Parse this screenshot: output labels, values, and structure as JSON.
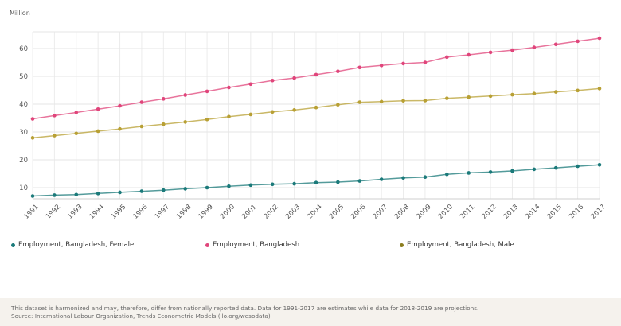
{
  "chart_data": {
    "type": "line",
    "ylabel": "Million",
    "ylim": [
      6,
      66
    ],
    "yticks": [
      10,
      20,
      30,
      40,
      50,
      60
    ],
    "categories": [
      "1991",
      "1992",
      "1993",
      "1994",
      "1995",
      "1996",
      "1997",
      "1998",
      "1999",
      "2000",
      "2001",
      "2002",
      "2003",
      "2004",
      "2005",
      "2006",
      "2007",
      "2008",
      "2009",
      "2010",
      "2011",
      "2012",
      "2013",
      "2014",
      "2015",
      "2016",
      "2017"
    ],
    "series": [
      {
        "name": "Employment, Bangladesh, Female",
        "color": "#1b7a7a",
        "values": [
          7.0,
          7.3,
          7.5,
          7.9,
          8.3,
          8.7,
          9.1,
          9.6,
          10.0,
          10.5,
          10.9,
          11.2,
          11.4,
          11.8,
          12.0,
          12.4,
          13.0,
          13.5,
          13.8,
          14.8,
          15.3,
          15.6,
          16.0,
          16.6,
          17.1,
          17.7,
          18.2
        ]
      },
      {
        "name": "Employment, Bangladesh",
        "color": "#e0457b",
        "values": [
          34.7,
          35.9,
          37.0,
          38.2,
          39.4,
          40.7,
          41.9,
          43.3,
          44.6,
          46.0,
          47.2,
          48.5,
          49.4,
          50.6,
          51.8,
          53.2,
          53.9,
          54.6,
          55.0,
          56.9,
          57.7,
          58.6,
          59.4,
          60.4,
          61.5,
          62.6,
          63.7
        ]
      },
      {
        "name": "Employment, Bangladesh, Male",
        "color": "#b8a034",
        "values": [
          27.9,
          28.7,
          29.5,
          30.3,
          31.1,
          32.0,
          32.8,
          33.6,
          34.5,
          35.5,
          36.3,
          37.2,
          37.9,
          38.8,
          39.8,
          40.7,
          40.9,
          41.2,
          41.3,
          42.1,
          42.5,
          42.9,
          43.4,
          43.8,
          44.4,
          44.9,
          45.6
        ]
      }
    ],
    "legend": [
      {
        "name": "Employment, Bangladesh, Female",
        "color": "#1b7a7a"
      },
      {
        "name": "Employment, Bangladesh",
        "color": "#e0457b"
      },
      {
        "name": "Employment, Bangladesh, Male",
        "color": "#8b7d1e"
      }
    ]
  },
  "footer": {
    "note": "This dataset is harmonized and may, therefore, differ from nationally reported data. Data for 1991-2017 are estimates while data for 2018-2019 are projections.",
    "source": "Source: International Labour Organization, Trends Econometric Models (ilo.org/wesodata)"
  }
}
